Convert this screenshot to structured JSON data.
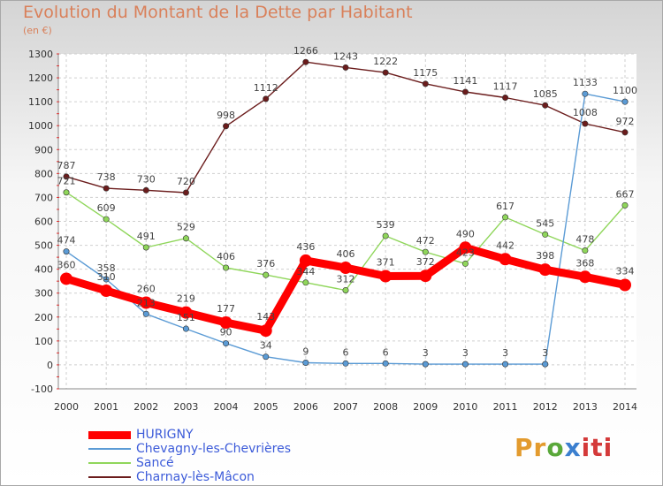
{
  "title": "Evolution du Montant de la Dette par Habitant",
  "subtitle": "(en €)",
  "logo": {
    "text": "Proxiti",
    "parts": [
      "Pr",
      "o",
      "x",
      "iti"
    ]
  },
  "chart_data": {
    "type": "line",
    "title": "Evolution du Montant de la Dette par Habitant",
    "ylabel": "(en €)",
    "xlabel": "",
    "ylim": [
      -100,
      1300
    ],
    "yticks": [
      -100,
      0,
      100,
      200,
      300,
      400,
      500,
      600,
      700,
      800,
      900,
      1000,
      1100,
      1200,
      1300
    ],
    "grid": true,
    "legend_position": "bottom-left",
    "x": [
      "2000",
      "2001",
      "2002",
      "2003",
      "2004",
      "2005",
      "2006",
      "2007",
      "2008",
      "2009",
      "2010",
      "2011",
      "2012",
      "2013",
      "2014"
    ],
    "series": [
      {
        "name": "Charnay-lès-Mâcon",
        "color": "#6b1c1c",
        "values": [
          787,
          738,
          730,
          720,
          998,
          1112,
          1266,
          1243,
          1222,
          1175,
          1141,
          1117,
          1085,
          1008,
          972
        ]
      },
      {
        "name": "Sancé",
        "color": "#8fd65a",
        "values": [
          721,
          609,
          491,
          529,
          406,
          376,
          344,
          312,
          539,
          472,
          423,
          617,
          545,
          478,
          667
        ]
      },
      {
        "name": "Chevagny-les-Chevrières",
        "color": "#5b9bd5",
        "values": [
          474,
          358,
          213,
          151,
          90,
          34,
          9,
          6,
          6,
          3,
          3,
          3,
          3,
          1133,
          1100
        ]
      },
      {
        "name": "HURIGNY",
        "color": "#ff0000",
        "values": [
          360,
          310,
          260,
          219,
          177,
          143,
          436,
          406,
          371,
          372,
          490,
          442,
          398,
          368,
          334
        ]
      }
    ],
    "legend_order": [
      "HURIGNY",
      "Chevagny-les-Chevrières",
      "Sancé",
      "Charnay-lès-Mâcon"
    ]
  }
}
